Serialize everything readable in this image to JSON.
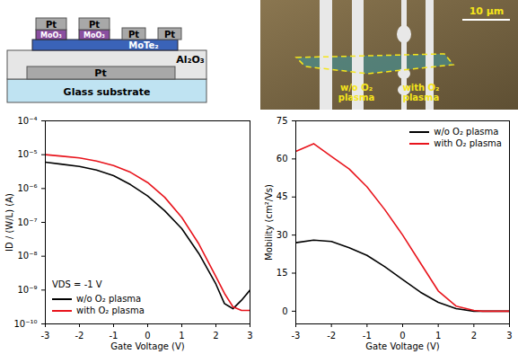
{
  "schematic": {
    "contacts": [
      "Pt",
      "Pt",
      "Pt",
      "Pt"
    ],
    "interlayers": [
      "MoO₃",
      "MoO₃"
    ],
    "channel": "MoTe₂",
    "dielectric": "Al₂O₃",
    "gate": "Pt",
    "substrate": "Glass substrate"
  },
  "micrograph": {
    "scale_bar": "10 µm",
    "labels": [
      "w/o O₂ plasma",
      "with O₂ plasma"
    ]
  },
  "chart_data": [
    {
      "type": "line",
      "x_label": "Gate Voltage (V)",
      "y_label": "ID / (W/L) (A)",
      "annotations": [
        "VDS = -1 V"
      ],
      "log": "y",
      "grid": false,
      "legend": "lower left",
      "xlim": [
        -3,
        3
      ],
      "xticks": [
        -3,
        -2,
        -1,
        0,
        1,
        2,
        3
      ],
      "ylim": [
        1e-10,
        0.0001
      ],
      "yticks": [
        {
          "value": 1e-10,
          "label": "10⁻¹⁰"
        },
        {
          "value": 1e-09,
          "label": "10⁻⁹"
        },
        {
          "value": 1e-08,
          "label": "10⁻⁸"
        },
        {
          "value": 1e-07,
          "label": "10⁻⁷"
        },
        {
          "value": 1e-06,
          "label": "10⁻⁶"
        },
        {
          "value": 1e-05,
          "label": "10⁻⁵"
        },
        {
          "value": 0.0001,
          "label": "10⁻⁴"
        }
      ],
      "x": [
        -3,
        -2.5,
        -2,
        -1.5,
        -1,
        -0.5,
        0,
        0.5,
        1,
        1.5,
        2,
        2.25,
        2.5,
        2.75,
        3
      ],
      "series": [
        {
          "name": "w/o O₂ plasma",
          "color": "#000000",
          "values": [
            6e-06,
            5.2e-06,
            4.5e-06,
            3.5e-06,
            2.4e-06,
            1.3e-06,
            6e-07,
            2.2e-07,
            6.5e-08,
            1.2e-08,
            1.5e-09,
            4e-10,
            2.8e-10,
            5e-10,
            1e-09
          ]
        },
        {
          "name": "with O₂ plasma",
          "color": "#e8141c",
          "values": [
            1e-05,
            9e-06,
            8e-06,
            6.5e-06,
            4.8e-06,
            3e-06,
            1.5e-06,
            5.5e-07,
            1.4e-07,
            2.3e-08,
            2.5e-09,
            8e-10,
            3.2e-10,
            2.5e-10,
            2.5e-10
          ]
        }
      ]
    },
    {
      "type": "line",
      "x_label": "Gate Voltage (V)",
      "y_label": "Mobility (cm²/Vs)",
      "grid": false,
      "legend": "upper right",
      "xlim": [
        -3,
        3
      ],
      "xticks": [
        -3,
        -2,
        -1,
        0,
        1,
        2,
        3
      ],
      "ylim": [
        -5,
        75
      ],
      "yticks": [
        0,
        15,
        30,
        45,
        60,
        75
      ],
      "x": [
        -3,
        -2.5,
        -2,
        -1.5,
        -1,
        -0.5,
        0,
        0.5,
        1,
        1.5,
        2,
        2.25,
        2.5,
        2.75,
        3
      ],
      "series": [
        {
          "name": "w/o O₂ plasma",
          "color": "#000000",
          "values": [
            27,
            28,
            27.5,
            25,
            22,
            17.5,
            12.5,
            7.5,
            3.5,
            1,
            0,
            0,
            0,
            0,
            0
          ]
        },
        {
          "name": "with O₂ plasma",
          "color": "#e8141c",
          "values": [
            63,
            66,
            61,
            56,
            49,
            40,
            30,
            19,
            8,
            2,
            0.3,
            0,
            0,
            0,
            0
          ]
        }
      ]
    }
  ]
}
